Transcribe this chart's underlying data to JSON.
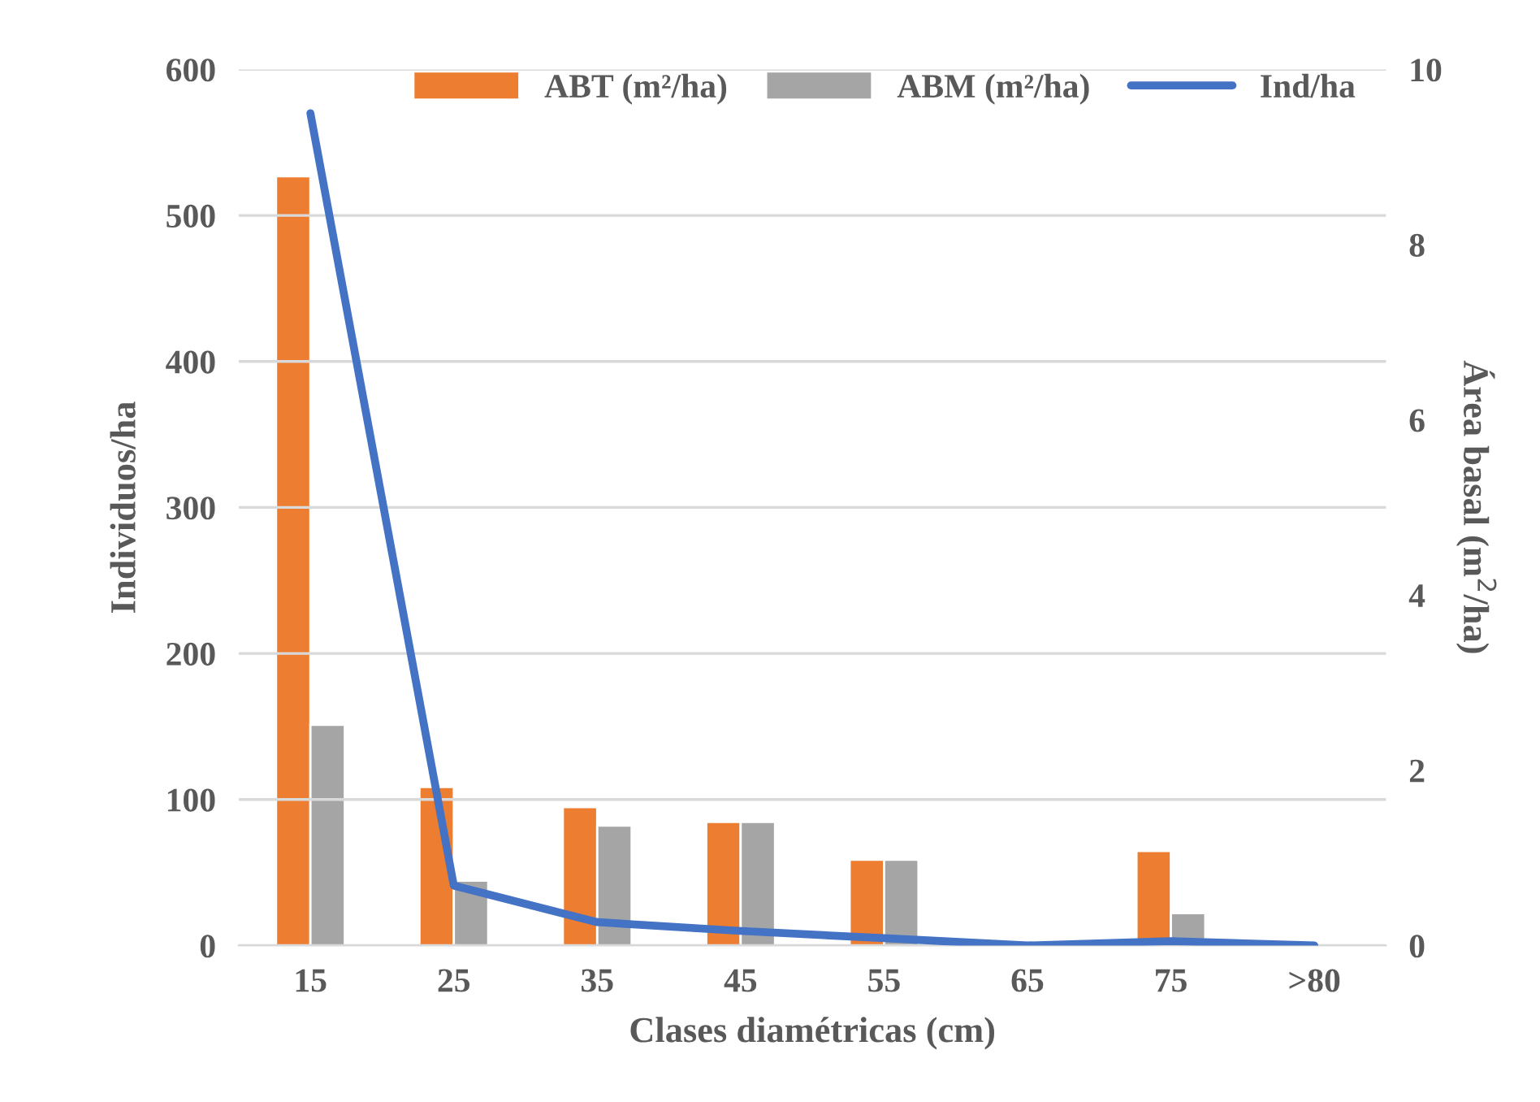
{
  "chart_data": {
    "type": "bar",
    "xlabel": "Clases diamétricas (cm)",
    "ylabel": "Individuos/ha",
    "y2label": "Área basal (m$^{2}$/ha)",
    "categories": [
      "15",
      "25",
      "35",
      "45",
      "55",
      "65",
      "75",
      ">80"
    ],
    "series": [
      {
        "name": "ABT (m²/ha)",
        "axis": "y2",
        "color": "#ed7d31",
        "values": [
          8.78,
          1.81,
          1.58,
          1.41,
          0.98,
          null,
          1.08,
          null
        ]
      },
      {
        "name": "ABM (m²/ha)",
        "axis": "y2",
        "color": "#a5a5a5",
        "values": [
          2.52,
          0.74,
          1.37,
          1.41,
          0.98,
          null,
          0.37,
          null
        ]
      },
      {
        "name": "Ind/ha",
        "type": "line",
        "axis": "y",
        "color": "#4472c4",
        "values": [
          570,
          41,
          16,
          10,
          5,
          0,
          3,
          0
        ]
      }
    ],
    "ylim": [
      0,
      600
    ],
    "yticks": [
      0,
      100,
      200,
      300,
      400,
      500,
      600
    ],
    "y2lim": [
      0,
      10
    ],
    "y2ticks": [
      0,
      2,
      4,
      6,
      8,
      10
    ],
    "grid": "y",
    "legend": "top right",
    "marker": "none",
    "line_style": "solid"
  }
}
